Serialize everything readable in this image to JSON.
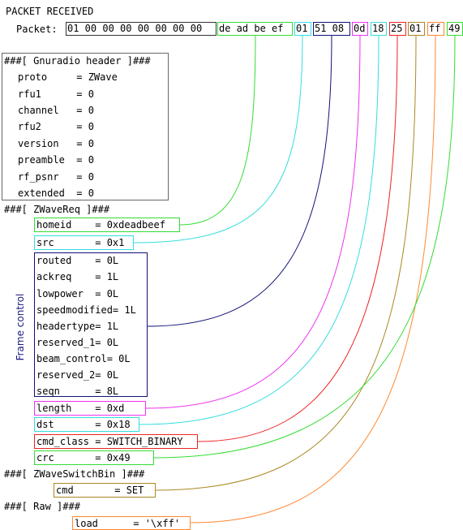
{
  "title": "PACKET RECEIVED",
  "packet_label": "Packet:",
  "bytes": {
    "group1": "01 00 00 00 00 00 00 00",
    "homeid": "de ad be ef",
    "src": "01",
    "fc": "51 08",
    "length": "0d",
    "dst": "18",
    "cmd_class": "25",
    "cmd": "01",
    "load": "ff",
    "crc": "49"
  },
  "gnuradio": {
    "header": "###[ Gnuradio header ]###",
    "rows": [
      "proto     = ZWave",
      "rfu1      = 0",
      "channel   = 0",
      "rfu2      = 0",
      "version   = 0",
      "preamble  = 0",
      "rf_psnr   = 0",
      "extended  = 0"
    ]
  },
  "zwavereq": {
    "header": "###[ ZWaveReq ]###",
    "homeid": "homeid    = 0xdeadbeef",
    "src": "src       = 0x1",
    "frame_control_label": "Frame control",
    "fc_rows": [
      "routed    = 0L",
      "ackreq    = 1L",
      "lowpower  = 0L",
      "speedmodified= 1L",
      "headertype= 1L",
      "reserved_1= 0L",
      "beam_control= 0L",
      "reserved_2= 0L",
      "seqn      = 8L"
    ],
    "length": "length    = 0xd",
    "dst": "dst       = 0x18",
    "cmd_class": "cmd_class = SWITCH_BINARY",
    "crc": "crc       = 0x49"
  },
  "switchbin": {
    "header": "###[ ZWaveSwitchBin ]###",
    "cmd": "cmd       = SET"
  },
  "raw": {
    "header": "###[ Raw ]###",
    "load": "load      = '\\xff'"
  },
  "colors": {
    "homeid": "#33dd33",
    "src": "#33dddd",
    "fc": "#111177",
    "length": "#ee33ee",
    "dst": "#33dddd",
    "cmd_class": "#ee2222",
    "cmd": "#aa8822",
    "load": "#ff8833",
    "crc": "#33dd33",
    "frame_label": "#1a1a80"
  }
}
